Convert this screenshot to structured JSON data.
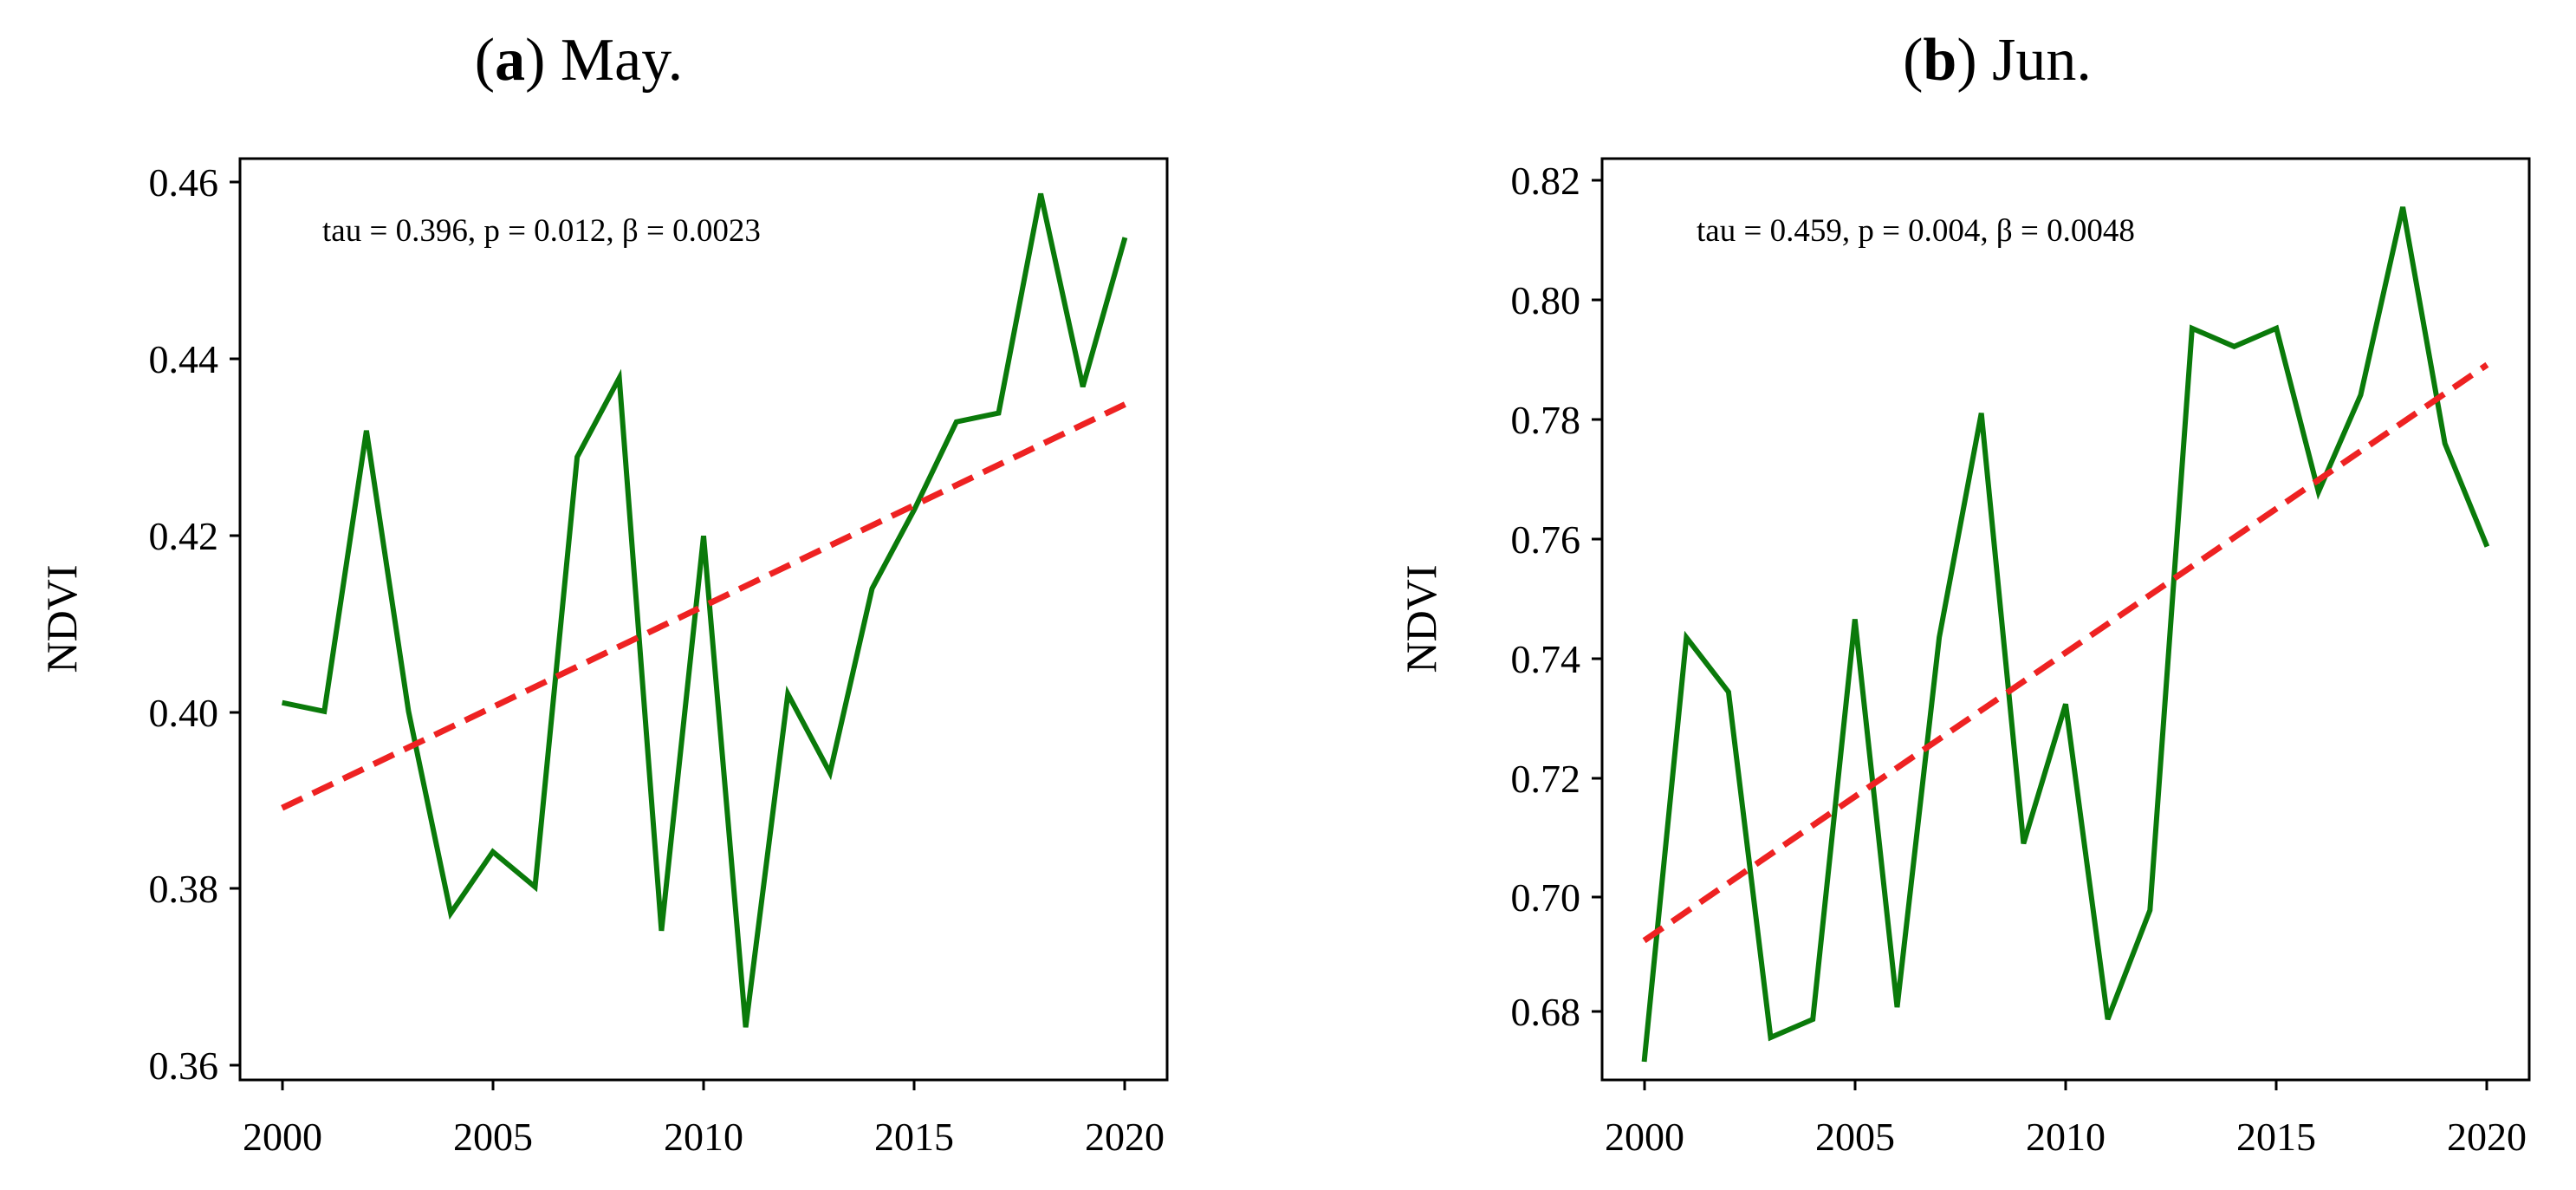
{
  "figure": {
    "panels": [
      {
        "title_letter": "a",
        "title_rest": " May.",
        "annotation": "tau = 0.396, p = 0.012, β = 0.0023",
        "ylabel": "NDVI",
        "ytick_labels": [
          "0.36",
          "0.38",
          "0.40",
          "0.42",
          "0.44",
          "0.46"
        ],
        "xtick_labels": [
          "2000",
          "2005",
          "2010",
          "2015",
          "2020"
        ]
      },
      {
        "title_letter": "b",
        "title_rest": " Jun.",
        "annotation": "tau = 0.459, p = 0.004, β = 0.0048",
        "ylabel": "NDVI",
        "ytick_labels": [
          "0.68",
          "0.70",
          "0.72",
          "0.74",
          "0.76",
          "0.78",
          "0.80",
          "0.82"
        ],
        "xtick_labels": [
          "2000",
          "2005",
          "2010",
          "2015",
          "2020"
        ]
      }
    ]
  },
  "colors": {
    "series_line": "#0a7a0a",
    "trend_line": "#ee2222",
    "axis": "#000000"
  },
  "chart_data": [
    {
      "type": "line",
      "title": "(a) May.",
      "xlabel": "",
      "ylabel": "NDVI",
      "xlim": [
        1999,
        2021
      ],
      "ylim": [
        0.357,
        0.462
      ],
      "yticks": [
        0.36,
        0.38,
        0.4,
        0.42,
        0.44,
        0.46
      ],
      "xticks": [
        2000,
        2005,
        2010,
        2015,
        2020
      ],
      "annotation": "tau = 0.396, p = 0.012, β = 0.0023",
      "series": [
        {
          "name": "NDVI",
          "style": "solid",
          "color": "#0a7a0a",
          "x": [
            2000,
            2001,
            2002,
            2003,
            2004,
            2005,
            2006,
            2007,
            2008,
            2009,
            2010,
            2011,
            2012,
            2013,
            2014,
            2015,
            2016,
            2017,
            2018,
            2019,
            2020
          ],
          "values": [
            0.4,
            0.399,
            0.431,
            0.399,
            0.376,
            0.383,
            0.379,
            0.428,
            0.437,
            0.374,
            0.419,
            0.363,
            0.401,
            0.392,
            0.413,
            0.422,
            0.432,
            0.433,
            0.458,
            0.436,
            0.453
          ]
        },
        {
          "name": "Trend",
          "style": "dashed",
          "color": "#ee2222",
          "x": [
            2000,
            2020
          ],
          "values": [
            0.388,
            0.434
          ]
        }
      ]
    },
    {
      "type": "line",
      "title": "(b) Jun.",
      "xlabel": "",
      "ylabel": "NDVI",
      "xlim": [
        1999,
        2021
      ],
      "ylim": [
        0.673,
        0.825
      ],
      "yticks": [
        0.68,
        0.7,
        0.72,
        0.74,
        0.76,
        0.78,
        0.8,
        0.82
      ],
      "xticks": [
        2000,
        2005,
        2010,
        2015,
        2020
      ],
      "annotation": "tau = 0.459, p = 0.004, β = 0.0048",
      "series": [
        {
          "name": "NDVI",
          "style": "solid",
          "color": "#0a7a0a",
          "x": [
            2000,
            2001,
            2002,
            2003,
            2004,
            2005,
            2006,
            2007,
            2008,
            2009,
            2010,
            2011,
            2012,
            2013,
            2014,
            2015,
            2016,
            2017,
            2018,
            2019,
            2020
          ],
          "values": [
            0.676,
            0.746,
            0.737,
            0.68,
            0.683,
            0.749,
            0.685,
            0.746,
            0.783,
            0.712,
            0.735,
            0.683,
            0.701,
            0.797,
            0.794,
            0.797,
            0.77,
            0.786,
            0.817,
            0.778,
            0.761
          ]
        },
        {
          "name": "Trend",
          "style": "dashed",
          "color": "#ee2222",
          "x": [
            2000,
            2020
          ],
          "values": [
            0.696,
            0.791
          ]
        }
      ]
    }
  ]
}
